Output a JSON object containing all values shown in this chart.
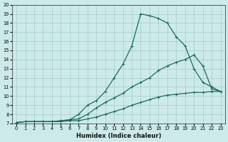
{
  "xlabel": "Humidex (Indice chaleur)",
  "bg_color": "#cdeaea",
  "grid_color": "#aacfcf",
  "line_color": "#1a6b5a",
  "xlim": [
    -0.5,
    23.5
  ],
  "ylim": [
    7,
    20
  ],
  "xticks": [
    0,
    1,
    2,
    3,
    4,
    5,
    6,
    7,
    8,
    9,
    10,
    11,
    12,
    13,
    14,
    15,
    16,
    17,
    18,
    19,
    20,
    21,
    22,
    23
  ],
  "yticks": [
    7,
    8,
    9,
    10,
    11,
    12,
    13,
    14,
    15,
    16,
    17,
    18,
    19,
    20
  ],
  "line1_x": [
    0,
    1,
    2,
    3,
    4,
    5,
    6,
    7,
    8,
    9,
    10,
    11,
    12,
    13,
    14,
    15,
    16,
    17,
    18,
    19,
    20,
    21,
    22,
    23
  ],
  "line1_y": [
    7.1,
    7.2,
    7.2,
    7.2,
    7.2,
    7.2,
    7.3,
    7.3,
    7.5,
    7.7,
    8.0,
    8.3,
    8.6,
    9.0,
    9.3,
    9.6,
    9.9,
    10.1,
    10.2,
    10.3,
    10.4,
    10.4,
    10.5,
    10.5
  ],
  "line2_x": [
    0,
    1,
    2,
    3,
    4,
    5,
    6,
    7,
    8,
    9,
    10,
    11,
    12,
    13,
    14,
    15,
    16,
    17,
    18,
    19,
    20,
    21,
    22,
    23
  ],
  "line2_y": [
    7.1,
    7.2,
    7.2,
    7.2,
    7.2,
    7.3,
    7.4,
    7.5,
    8.0,
    8.7,
    9.3,
    9.8,
    10.3,
    11.0,
    11.5,
    12.0,
    12.8,
    13.3,
    13.7,
    14.0,
    14.5,
    13.3,
    10.8,
    10.5
  ],
  "line3_x": [
    0,
    1,
    2,
    3,
    4,
    5,
    6,
    7,
    8,
    9,
    10,
    11,
    12,
    13,
    14,
    15,
    16,
    17,
    18,
    19,
    20,
    21,
    22,
    23
  ],
  "line3_y": [
    7.1,
    7.2,
    7.2,
    7.2,
    7.2,
    7.3,
    7.4,
    8.0,
    9.0,
    9.5,
    10.5,
    12.0,
    13.5,
    15.5,
    19.0,
    18.8,
    18.5,
    18.0,
    16.5,
    15.5,
    13.0,
    11.5,
    11.0,
    10.5
  ]
}
